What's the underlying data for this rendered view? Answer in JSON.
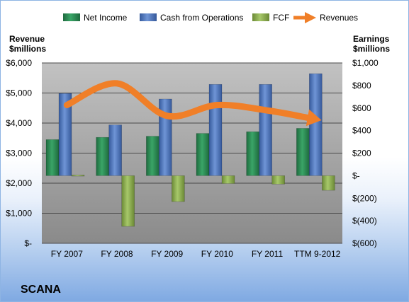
{
  "chart_data": {
    "type": "bar",
    "title": "SCANA",
    "categories": [
      "FY 2007",
      "FY 2008",
      "FY 2009",
      "FY 2010",
      "FY 2011",
      "TTM 9-2012"
    ],
    "left_axis": {
      "label_line1": "Revenue",
      "label_line2": "$millions",
      "range": [
        0,
        6000
      ],
      "ticks": [
        "$-",
        "$1,000",
        "$2,000",
        "$3,000",
        "$4,000",
        "$5,000",
        "$6,000"
      ]
    },
    "right_axis": {
      "label_line1": "Earnings",
      "label_line2": "$millions",
      "range": [
        -600,
        1000
      ],
      "ticks": [
        "$(600)",
        "$(400)",
        "$(200)",
        "$-",
        "$200",
        "$400",
        "$600",
        "$800",
        "$1,000"
      ]
    },
    "series": [
      {
        "name": "Net Income",
        "axis": "right",
        "kind": "bar",
        "color": "#2e8b57",
        "values": [
          320,
          340,
          350,
          375,
          390,
          420
        ]
      },
      {
        "name": "Cash from Operations",
        "axis": "right",
        "kind": "bar",
        "color": "#4f76bd",
        "values": [
          730,
          450,
          680,
          810,
          810,
          905
        ]
      },
      {
        "name": "FCF",
        "axis": "right",
        "kind": "bar",
        "color": "#8db051",
        "values": [
          5,
          -450,
          -230,
          -70,
          -75,
          -130
        ]
      },
      {
        "name": "Revenues",
        "axis": "left",
        "kind": "arrow-line",
        "color": "#f07f28",
        "values": [
          4600,
          5320,
          4240,
          4600,
          4420,
          4120
        ]
      }
    ],
    "legend_position": "top",
    "grid": true
  },
  "company_name": "SCANA"
}
